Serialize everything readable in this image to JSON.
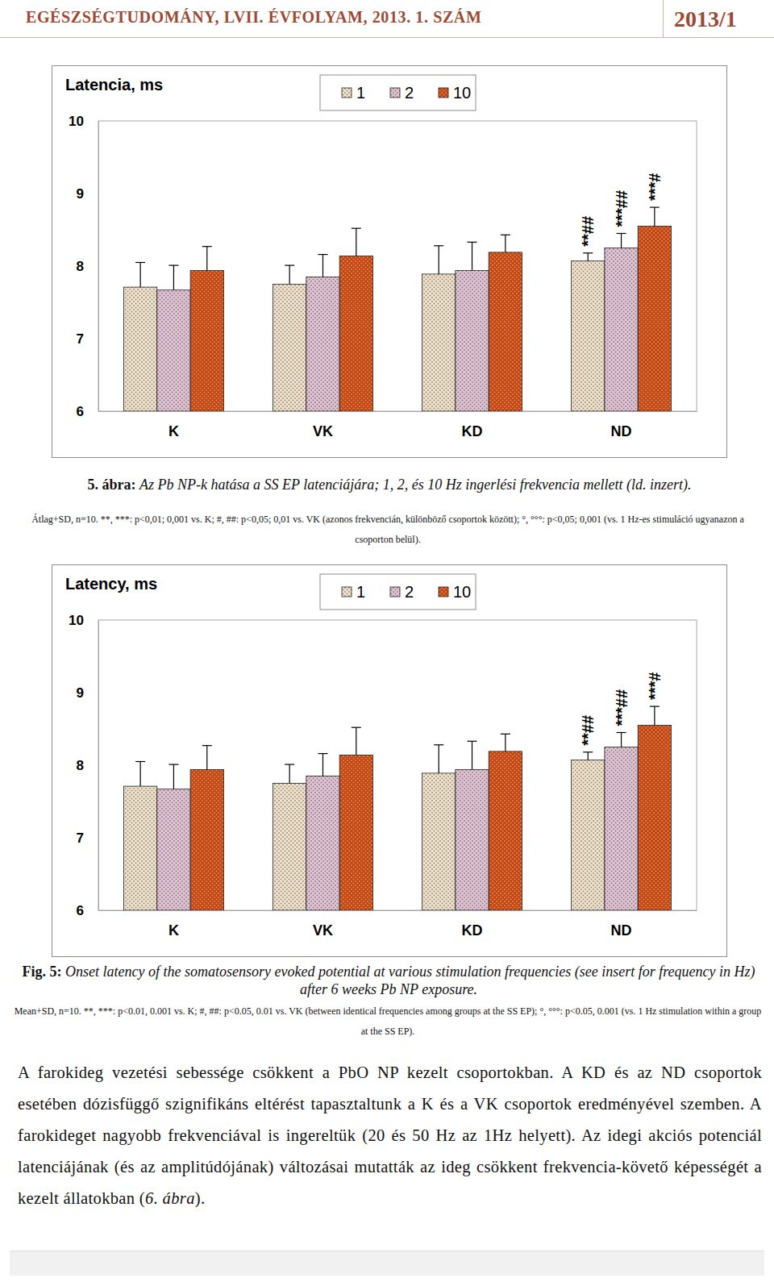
{
  "header": {
    "journal": "EGÉSZSÉGTUDOMÁNY, LVII. ÉVFOLYAM, 2013. 1. SZÁM",
    "issue": "2013/1"
  },
  "chart_data": [
    {
      "type": "bar",
      "title": "Latencia, ms",
      "categories": [
        "K",
        "VK",
        "KD",
        "ND"
      ],
      "series": [
        {
          "name": "1",
          "color": "#f2e3cc",
          "values": [
            7.71,
            7.75,
            7.89,
            8.07
          ],
          "errors": [
            0.34,
            0.26,
            0.39,
            0.11
          ],
          "annotations": [
            null,
            null,
            null,
            "**##"
          ]
        },
        {
          "name": "2",
          "color": "#e3c6d6",
          "values": [
            7.67,
            7.85,
            7.94,
            8.25
          ],
          "errors": [
            0.34,
            0.31,
            0.39,
            0.2
          ],
          "annotations": [
            null,
            null,
            null,
            "***##"
          ]
        },
        {
          "name": "10",
          "color": "#b9461c",
          "values": [
            7.94,
            8.14,
            8.19,
            8.55
          ],
          "errors": [
            0.33,
            0.38,
            0.24,
            0.26
          ],
          "annotations": [
            null,
            null,
            null,
            "***#"
          ]
        }
      ],
      "ylim": [
        6,
        10
      ],
      "yticks": [
        6,
        7,
        8,
        9,
        10
      ],
      "legend": "top"
    },
    {
      "type": "bar",
      "title": "Latency, ms",
      "categories": [
        "K",
        "VK",
        "KD",
        "ND"
      ],
      "series": [
        {
          "name": "1",
          "color": "#f2e3cc",
          "values": [
            7.71,
            7.75,
            7.89,
            8.07
          ],
          "errors": [
            0.34,
            0.26,
            0.39,
            0.11
          ],
          "annotations": [
            null,
            null,
            null,
            "**##"
          ]
        },
        {
          "name": "2",
          "color": "#e3c6d6",
          "values": [
            7.67,
            7.85,
            7.94,
            8.25
          ],
          "errors": [
            0.34,
            0.31,
            0.39,
            0.2
          ],
          "annotations": [
            null,
            null,
            null,
            "***##"
          ]
        },
        {
          "name": "10",
          "color": "#b9461c",
          "values": [
            7.94,
            8.14,
            8.19,
            8.55
          ],
          "errors": [
            0.33,
            0.38,
            0.24,
            0.26
          ],
          "annotations": [
            null,
            null,
            null,
            "***#"
          ]
        }
      ],
      "ylim": [
        6,
        10
      ],
      "yticks": [
        6,
        7,
        8,
        9,
        10
      ],
      "legend": "top"
    }
  ],
  "captions": [
    {
      "label": "5. ábra:",
      "text": "Az Pb NP-k hatása a SS EP latenciájára; 1, 2, és 10 Hz ingerlési frekvencia mellett (ld. inzert).",
      "note": "Átlag+SD, n=10. **, ***: p<0,01; 0,001 vs. K; #, ##: p<0,05; 0,01 vs. VK (azonos frekvencián, különböző csoportok között); °, °°°: p<0,05; 0,001 (vs. 1 Hz-es stimuláció ugyanazon a csoporton belül)."
    },
    {
      "label": "Fig. 5:",
      "text": "Onset latency of the somatosensory evoked potential at various stimulation frequencies (see insert for frequency in Hz) after 6 weeks Pb NP exposure.",
      "note": "Mean+SD, n=10. **, ***: p<0.01, 0.001 vs. K; #, ##: p<0.05, 0.01 vs. VK (between identical frequencies among groups at the SS EP); °, °°°: p<0.05, 0.001 (vs. 1 Hz stimulation within a group at the SS EP)."
    }
  ],
  "body": {
    "text": "A farokideg vezetési sebessége csökkent a PbO NP kezelt csoportokban. A KD és az ND csoportok esetében dózisfüggő szignifikáns eltérést tapasztaltunk a K és a VK csoportok eredményével szemben. A farokideget nagyobb frekvenciával is ingereltük (20 és 50 Hz az 1Hz helyett). Az idegi akciós potenciál latenciájának (és az amplitúdójának) változásai mutatták az ideg csökkent frekvencia-követő képességét a kezelt állatokban (",
    "figure_ref": "6. ábra",
    "text_end": ")."
  }
}
